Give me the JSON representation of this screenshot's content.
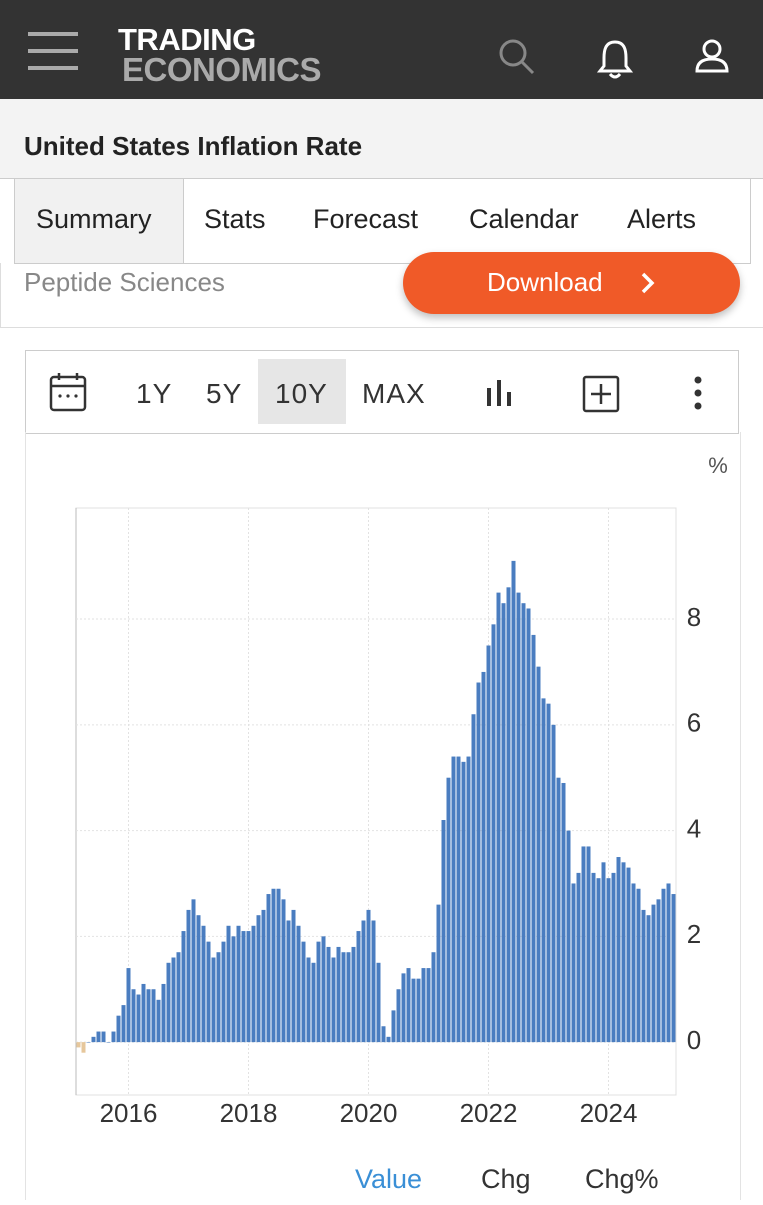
{
  "header": {
    "logo_line1": "TRADING",
    "logo_line2": "ECONOMICS"
  },
  "page_title": "United States Inflation Rate",
  "tabs": [
    "Summary",
    "Stats",
    "Forecast",
    "Calendar",
    "Alerts"
  ],
  "ad": {
    "advertiser": "Peptide Sciences",
    "button": "Download"
  },
  "toolbar": {
    "ranges": [
      "1Y",
      "5Y",
      "10Y",
      "MAX"
    ]
  },
  "chart_data": {
    "type": "bar",
    "unit": "%",
    "categories": [
      null,
      null,
      null,
      null,
      null,
      null,
      null,
      null,
      null,
      null,
      "2016",
      null,
      null,
      null,
      null,
      null,
      null,
      null,
      null,
      null,
      null,
      null,
      null,
      null,
      null,
      null,
      null,
      null,
      null,
      null,
      null,
      null,
      null,
      null,
      "2018",
      null,
      null,
      null,
      null,
      null,
      null,
      null,
      null,
      null,
      null,
      null,
      null,
      null,
      null,
      null,
      null,
      null,
      null,
      null,
      null,
      null,
      null,
      null,
      "2020",
      null,
      null,
      null,
      null,
      null,
      null,
      null,
      null,
      null,
      null,
      null,
      null,
      null,
      null,
      null,
      null,
      null,
      null,
      null,
      null,
      null,
      null,
      null,
      "2022",
      null,
      null,
      null,
      null,
      null,
      null,
      null,
      null,
      null,
      null,
      null,
      null,
      null,
      null,
      null,
      null,
      null,
      null,
      null,
      null,
      null,
      null,
      null,
      "2024",
      null,
      null,
      null,
      null,
      null,
      null,
      null,
      null,
      null,
      null,
      null,
      null,
      null
    ],
    "values": [
      -0.1,
      -0.2,
      0.0,
      0.1,
      0.2,
      0.2,
      0.0,
      0.2,
      0.5,
      0.7,
      1.4,
      1.0,
      0.9,
      1.1,
      1.0,
      1.0,
      0.8,
      1.1,
      1.5,
      1.6,
      1.7,
      2.1,
      2.5,
      2.7,
      2.4,
      2.2,
      1.9,
      1.6,
      1.7,
      1.9,
      2.2,
      2.0,
      2.2,
      2.1,
      2.1,
      2.2,
      2.4,
      2.5,
      2.8,
      2.9,
      2.9,
      2.7,
      2.3,
      2.5,
      2.2,
      1.9,
      1.6,
      1.5,
      1.9,
      2.0,
      1.8,
      1.6,
      1.8,
      1.7,
      1.7,
      1.8,
      2.1,
      2.3,
      2.5,
      2.3,
      1.5,
      0.3,
      0.1,
      0.6,
      1.0,
      1.3,
      1.4,
      1.2,
      1.2,
      1.4,
      1.4,
      1.7,
      2.6,
      4.2,
      5.0,
      5.4,
      5.4,
      5.3,
      5.4,
      6.2,
      6.8,
      7.0,
      7.5,
      7.9,
      8.5,
      8.3,
      8.6,
      9.1,
      8.5,
      8.3,
      8.2,
      7.7,
      7.1,
      6.5,
      6.4,
      6.0,
      5.0,
      4.9,
      4.0,
      3.0,
      3.2,
      3.7,
      3.7,
      3.2,
      3.1,
      3.4,
      3.1,
      3.2,
      3.5,
      3.4,
      3.3,
      3.0,
      2.9,
      2.5,
      2.4,
      2.6,
      2.7,
      2.9,
      3.0,
      2.8
    ],
    "color": "#4a7dc0",
    "negative_color": "#e6c79c",
    "ylim": [
      -1,
      10.1
    ],
    "yticks": [
      0,
      2,
      4,
      6,
      8
    ],
    "grid": true
  },
  "footer_tabs": [
    "Value",
    "Chg",
    "Chg%"
  ]
}
